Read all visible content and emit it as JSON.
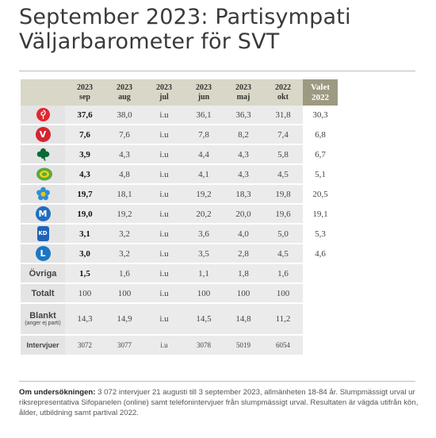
{
  "title": "September 2023: Partisympati Väljarbarometer för SVT",
  "columns": [
    {
      "year": "2023",
      "month": "sep"
    },
    {
      "year": "2023",
      "month": "aug"
    },
    {
      "year": "2023",
      "month": "jul"
    },
    {
      "year": "2023",
      "month": "jun"
    },
    {
      "year": "2023",
      "month": "maj"
    },
    {
      "year": "2022",
      "month": "okt"
    }
  ],
  "valet_header": {
    "line1": "Valet",
    "line2": "2022"
  },
  "parties": [
    {
      "logo": "rose-icon",
      "logo_color": "#e3262f",
      "values": [
        "37,6",
        "38,0",
        "i.u",
        "36,1",
        "36,3",
        "31,8"
      ],
      "valet": "30,3"
    },
    {
      "logo": "v-icon",
      "logo_color": "#d42530",
      "values": [
        "7,6",
        "7,6",
        "i.u",
        "7,8",
        "8,2",
        "7,4"
      ],
      "valet": "6,8"
    },
    {
      "logo": "clover-icon",
      "logo_color": "#0b6b35",
      "values": [
        "3,9",
        "4,3",
        "i.u",
        "4,4",
        "4,3",
        "5,8"
      ],
      "valet": "6,7"
    },
    {
      "logo": "c-icon",
      "logo_color": "#58a845",
      "values": [
        "4,3",
        "4,8",
        "i.u",
        "4,1",
        "4,3",
        "4,5"
      ],
      "valet": "5,1"
    },
    {
      "logo": "flower-icon",
      "logo_color": "#f5c400",
      "values": [
        "19,7",
        "18,1",
        "i.u",
        "19,2",
        "18,3",
        "19,8"
      ],
      "valet": "20,5"
    },
    {
      "logo": "m-icon",
      "logo_color": "#1f6dc1",
      "values": [
        "19,0",
        "19,2",
        "i.u",
        "20,2",
        "20,0",
        "19,6"
      ],
      "valet": "19,1"
    },
    {
      "logo": "kd-icon",
      "logo_color": "#1f63b8",
      "values": [
        "3,1",
        "3,2",
        "i.u",
        "3,6",
        "4,0",
        "5,0"
      ],
      "valet": "5,3"
    },
    {
      "logo": "l-icon",
      "logo_color": "#1a77c4",
      "values": [
        "3,0",
        "3,2",
        "i.u",
        "3,5",
        "2,8",
        "4,5"
      ],
      "valet": "4,6"
    }
  ],
  "logo_letters": {
    "v": "V",
    "kd": "KD",
    "m": "M",
    "l": "L"
  },
  "ovriga": {
    "label": "Övriga",
    "values": [
      "1,5",
      "1,6",
      "i.u",
      "1,1",
      "1,8",
      "1,6"
    ]
  },
  "totalt": {
    "label": "Totalt",
    "values": [
      "100",
      "100",
      "i.u",
      "100",
      "100",
      "100"
    ]
  },
  "blankt": {
    "label": "Blankt",
    "sub": "(anger ej parti)",
    "values": [
      "14,3",
      "14,9",
      "i.u",
      "14,5",
      "14,8",
      "11,2"
    ]
  },
  "intervjuer": {
    "label": "Intervjuer",
    "values": [
      "3072",
      "3077",
      "i.u",
      "3078",
      "5019",
      "6054"
    ]
  },
  "footer": {
    "bold": "Om undersökningen:",
    "text": " 3 072 intervjuer 21 augusti till 3 september 2023, allmänheten 18-84 år. Slumpmässigt urval ur riksrepresentativa Sifopanelen (online) samt telefonintervjuer från slumpmässigt urval. Resultaten är vägda utifrån kön, ålder, utbildning samt partival 2022."
  }
}
